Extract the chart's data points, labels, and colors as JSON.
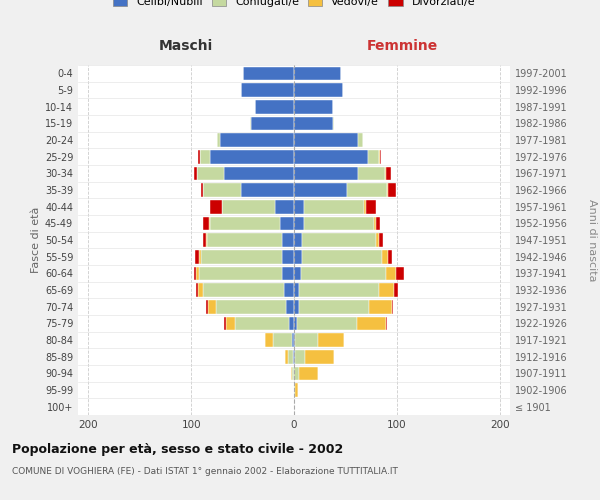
{
  "age_groups": [
    "100+",
    "95-99",
    "90-94",
    "85-89",
    "80-84",
    "75-79",
    "70-74",
    "65-69",
    "60-64",
    "55-59",
    "50-54",
    "45-49",
    "40-44",
    "35-39",
    "30-34",
    "25-29",
    "20-24",
    "15-19",
    "10-14",
    "5-9",
    "0-4"
  ],
  "birth_years": [
    "≤ 1901",
    "1902-1906",
    "1907-1911",
    "1912-1916",
    "1917-1921",
    "1922-1926",
    "1927-1931",
    "1932-1936",
    "1937-1941",
    "1942-1946",
    "1947-1951",
    "1952-1956",
    "1957-1961",
    "1962-1966",
    "1967-1971",
    "1972-1976",
    "1977-1981",
    "1982-1986",
    "1987-1991",
    "1992-1996",
    "1997-2001"
  ],
  "maschi": {
    "celibi": [
      0,
      0,
      0,
      1,
      2,
      5,
      8,
      10,
      12,
      12,
      12,
      14,
      18,
      52,
      68,
      82,
      72,
      42,
      38,
      52,
      50
    ],
    "coniugati": [
      0,
      0,
      2,
      5,
      18,
      52,
      68,
      78,
      80,
      78,
      73,
      68,
      52,
      36,
      26,
      9,
      3,
      1,
      0,
      0,
      0
    ],
    "vedovi": [
      0,
      0,
      1,
      3,
      8,
      9,
      8,
      5,
      3,
      2,
      1,
      1,
      0,
      0,
      0,
      0,
      0,
      0,
      0,
      0,
      0
    ],
    "divorziati": [
      0,
      0,
      0,
      0,
      0,
      2,
      2,
      2,
      2,
      4,
      2,
      5,
      12,
      2,
      3,
      2,
      0,
      0,
      0,
      0,
      0
    ]
  },
  "femmine": {
    "nubili": [
      0,
      0,
      0,
      1,
      1,
      3,
      5,
      5,
      7,
      8,
      8,
      10,
      10,
      52,
      62,
      72,
      62,
      38,
      38,
      48,
      46
    ],
    "coniugate": [
      0,
      1,
      5,
      10,
      22,
      58,
      68,
      78,
      82,
      78,
      72,
      68,
      58,
      38,
      26,
      11,
      5,
      1,
      0,
      0,
      0
    ],
    "vedove": [
      0,
      3,
      18,
      28,
      26,
      28,
      22,
      14,
      10,
      5,
      3,
      2,
      2,
      1,
      1,
      1,
      0,
      0,
      0,
      0,
      0
    ],
    "divorziate": [
      0,
      0,
      0,
      0,
      0,
      1,
      1,
      4,
      8,
      4,
      4,
      4,
      10,
      8,
      5,
      1,
      0,
      0,
      0,
      0,
      0
    ]
  },
  "colors": {
    "celibi": "#4472c4",
    "coniugati": "#c5d9a0",
    "vedovi": "#f5c040",
    "divorziati": "#cc0000"
  },
  "xlim": 210,
  "xticks": [
    -200,
    -100,
    0,
    100,
    200
  ],
  "title": "Popolazione per età, sesso e stato civile - 2002",
  "subtitle": "COMUNE DI VOGHIERA (FE) - Dati ISTAT 1° gennaio 2002 - Elaborazione TUTTITALIA.IT",
  "ylabel_left": "Fasce di età",
  "ylabel_right": "Anni di nascita",
  "xlabel_left": "Maschi",
  "xlabel_right": "Femmine",
  "bg_color": "#f0f0f0",
  "plot_bg_color": "#ffffff",
  "legend_labels": [
    "Celibi/Nubili",
    "Coniugati/e",
    "Vedovi/e",
    "Divorziati/e"
  ]
}
